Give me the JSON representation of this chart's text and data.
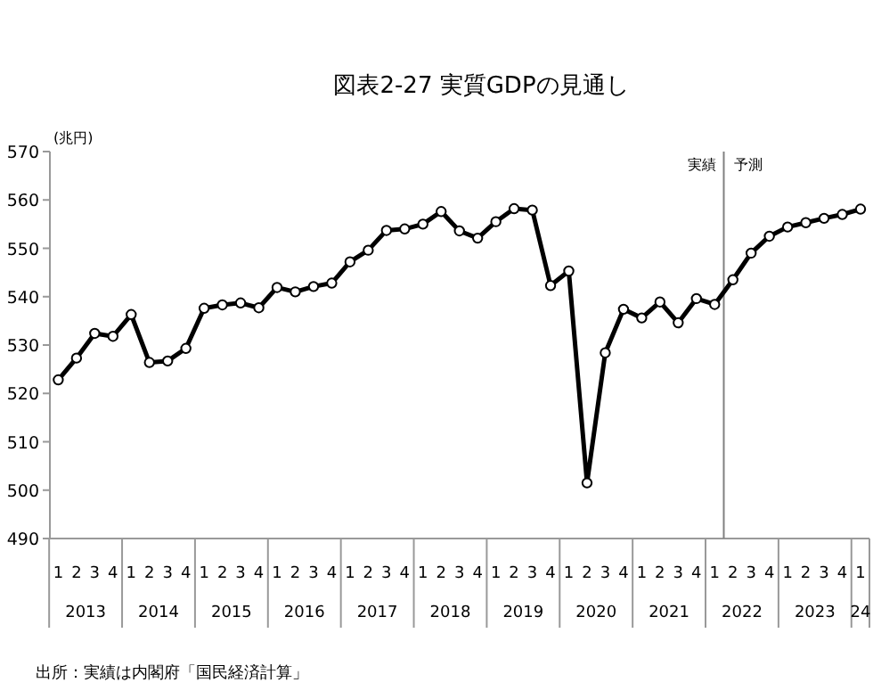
{
  "chart_data": {
    "type": "line",
    "title": "図表2-27  実質GDPの見通し",
    "ylabel": "(兆円)",
    "categories": [
      "1",
      "2",
      "3",
      "4",
      "1",
      "2",
      "3",
      "4",
      "1",
      "2",
      "3",
      "4",
      "1",
      "2",
      "3",
      "4",
      "1",
      "2",
      "3",
      "4",
      "1",
      "2",
      "3",
      "4",
      "1",
      "2",
      "3",
      "4",
      "1",
      "2",
      "3",
      "4",
      "1",
      "2",
      "3",
      "4",
      "1",
      "2",
      "3",
      "4",
      "1",
      "2",
      "3",
      "4",
      "1"
    ],
    "series": [
      {
        "color": "#000000",
        "values": [
          522.8,
          527.3,
          532.4,
          531.8,
          536.3,
          526.4,
          526.7,
          529.3,
          537.6,
          538.3,
          538.7,
          537.7,
          541.9,
          541.0,
          542.1,
          542.8,
          547.2,
          549.6,
          553.7,
          554.0,
          555.0,
          557.6,
          553.6,
          552.1,
          555.5,
          558.2,
          557.9,
          542.3,
          545.3,
          501.5,
          528.4,
          537.4,
          535.6,
          538.9,
          534.6,
          539.6,
          538.4,
          543.5,
          549.0,
          552.5,
          554.4,
          555.3,
          556.2,
          557.0,
          558.1
        ]
      }
    ],
    "ylim": [
      490,
      570
    ],
    "yticks": [
      490,
      500,
      510,
      520,
      530,
      540,
      550,
      560,
      570
    ],
    "grid": false,
    "marker": "circle",
    "line_style": "solid",
    "annotations": [
      "実績",
      "予測",
      "出所：実績は内閣府「国民経済計算」",
      "2013",
      "2014",
      "2015",
      "2016",
      "2017",
      "2018",
      "2019",
      "2020",
      "2021",
      "2022",
      "2023",
      "24"
    ]
  }
}
